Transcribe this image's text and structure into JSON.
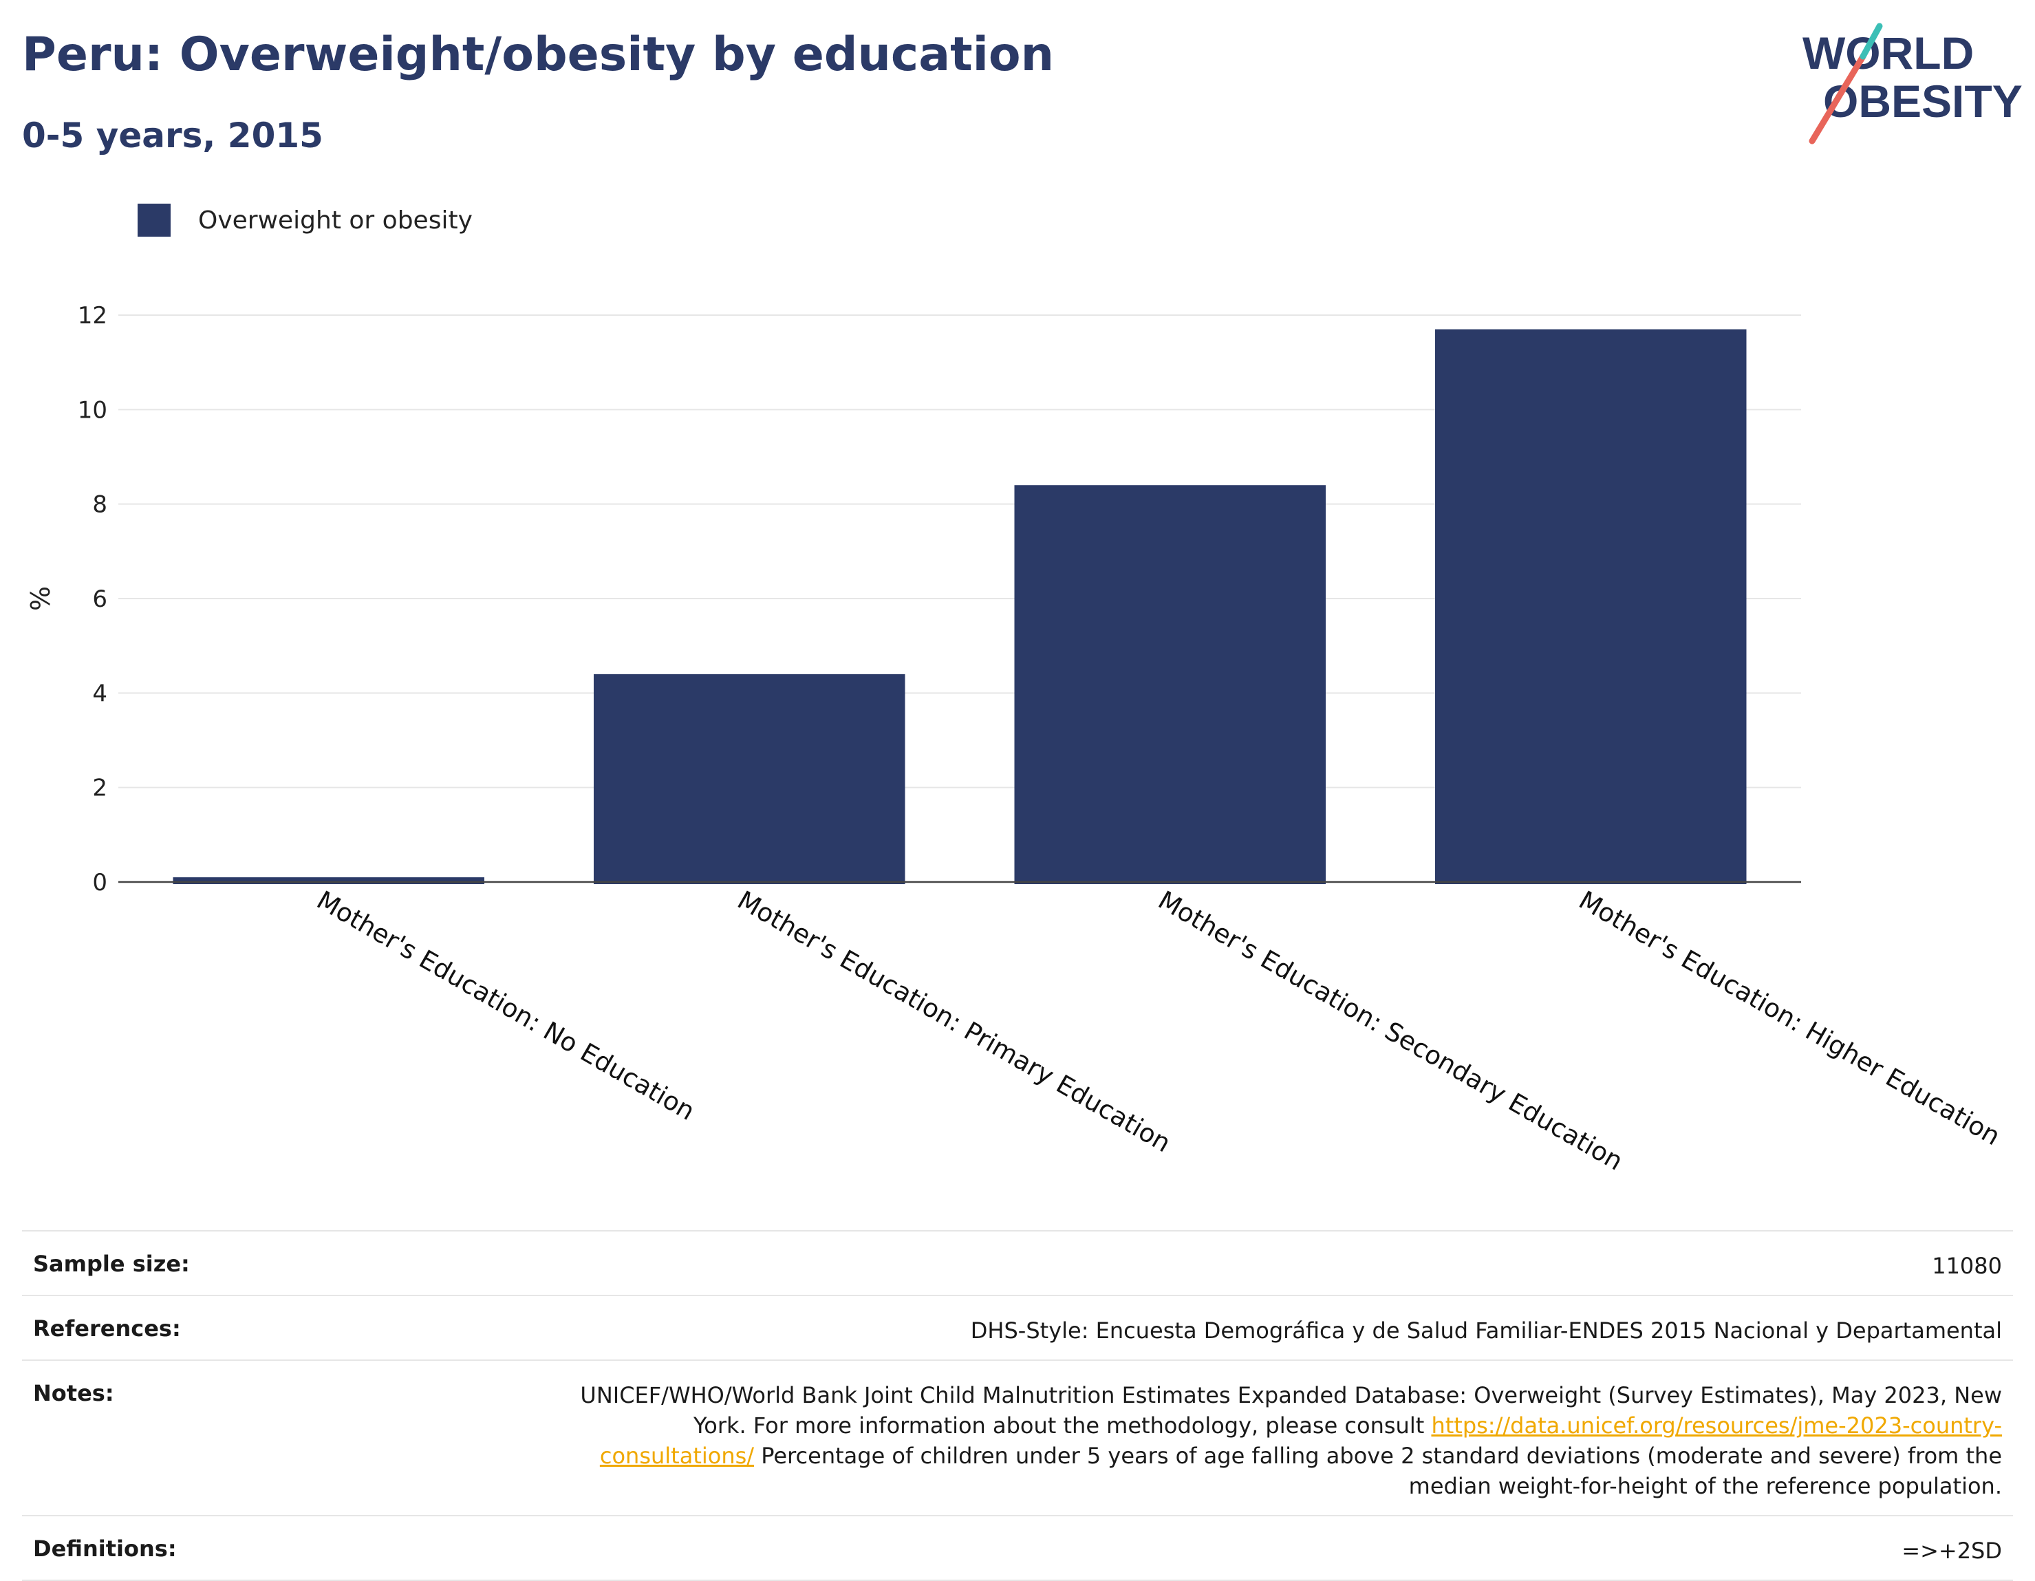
{
  "header": {
    "title": "Peru: Overweight/obesity by education",
    "subtitle": "0-5 years, 2015"
  },
  "logo": {
    "line1": "WORLD",
    "line2": "OBESITY"
  },
  "colors": {
    "bar": "#2b3a67",
    "accent_red": "#e8655a",
    "accent_teal": "#3bbfb6"
  },
  "chart_data": {
    "type": "bar",
    "categories": [
      "Mother's Education: No Education",
      "Mother's Education: Primary Education",
      "Mother's Education: Secondary Education",
      "Mother's Education: Higher Education"
    ],
    "series": [
      {
        "name": "Overweight or obesity",
        "values": [
          0.1,
          4.4,
          8.4,
          11.7
        ]
      }
    ],
    "ylabel": "%",
    "ylim": [
      0,
      12
    ],
    "yticks": [
      0,
      2,
      4,
      6,
      8,
      10,
      12
    ],
    "grid": true,
    "legend_position": "top-left"
  },
  "meta": {
    "sample_size_label": "Sample size:",
    "sample_size_value": "11080",
    "references_label": "References:",
    "references_value": "DHS-Style: Encuesta Demográfica y de Salud Familiar-ENDES 2015 Nacional y Departamental",
    "notes_label": "Notes:",
    "notes_text_1": "UNICEF/WHO/World Bank Joint Child Malnutrition Estimates Expanded Database: Overweight (Survey Estimates), May 2023, New York. For more information about the methodology, please consult ",
    "notes_link": "https://data.unicef.org/resources/jme-2023-country-consultations/",
    "notes_text_2": " Percentage of children under 5 years of age falling above 2 standard deviations (moderate and severe) from the median weight-for-height of the reference population.",
    "definitions_label": "Definitions:",
    "definitions_value": "=>+2SD"
  }
}
